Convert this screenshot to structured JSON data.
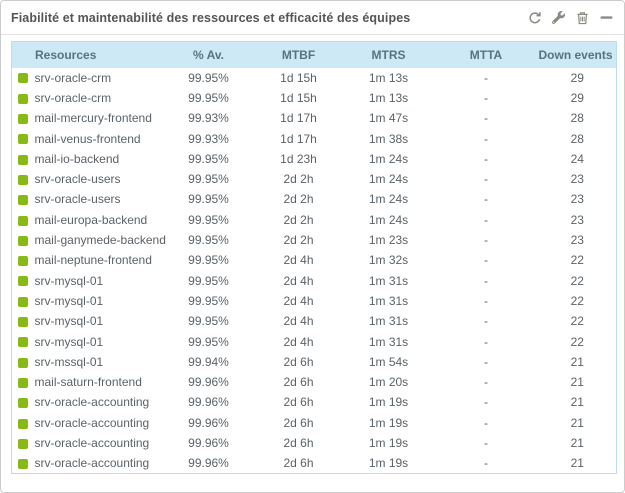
{
  "widget": {
    "title": "Fiabilité et maintenabilité des ressources et efficacité des équipes",
    "toolbar": {
      "refresh_icon": "refresh-icon",
      "configure_icon": "wrench-icon",
      "delete_icon": "trash-icon",
      "minimize_icon": "minus-icon"
    }
  },
  "table": {
    "columns": [
      "Resources",
      "% Av.",
      "MTBF",
      "MTRS",
      "MTTA",
      "Down events"
    ],
    "rows": [
      {
        "status": "ok",
        "resource": "srv-oracle-crm",
        "availability": "99.95%",
        "mtbf": "1d 15h",
        "mtrs": "1m 13s",
        "mtta": "-",
        "down_events": "29"
      },
      {
        "status": "ok",
        "resource": "srv-oracle-crm",
        "availability": "99.95%",
        "mtbf": "1d 15h",
        "mtrs": "1m 13s",
        "mtta": "-",
        "down_events": "29"
      },
      {
        "status": "ok",
        "resource": "mail-mercury-frontend",
        "availability": "99.93%",
        "mtbf": "1d 17h",
        "mtrs": "1m 47s",
        "mtta": "-",
        "down_events": "28"
      },
      {
        "status": "ok",
        "resource": "mail-venus-frontend",
        "availability": "99.93%",
        "mtbf": "1d 17h",
        "mtrs": "1m 38s",
        "mtta": "-",
        "down_events": "28"
      },
      {
        "status": "ok",
        "resource": "mail-io-backend",
        "availability": "99.95%",
        "mtbf": "1d 23h",
        "mtrs": "1m 24s",
        "mtta": "-",
        "down_events": "24"
      },
      {
        "status": "ok",
        "resource": "srv-oracle-users",
        "availability": "99.95%",
        "mtbf": "2d 2h",
        "mtrs": "1m 24s",
        "mtta": "-",
        "down_events": "23"
      },
      {
        "status": "ok",
        "resource": "srv-oracle-users",
        "availability": "99.95%",
        "mtbf": "2d 2h",
        "mtrs": "1m 24s",
        "mtta": "-",
        "down_events": "23"
      },
      {
        "status": "ok",
        "resource": "mail-europa-backend",
        "availability": "99.95%",
        "mtbf": "2d 2h",
        "mtrs": "1m 24s",
        "mtta": "-",
        "down_events": "23"
      },
      {
        "status": "ok",
        "resource": "mail-ganymede-backend",
        "availability": "99.95%",
        "mtbf": "2d 2h",
        "mtrs": "1m 23s",
        "mtta": "-",
        "down_events": "23"
      },
      {
        "status": "ok",
        "resource": "mail-neptune-frontend",
        "availability": "99.95%",
        "mtbf": "2d 4h",
        "mtrs": "1m 32s",
        "mtta": "-",
        "down_events": "22"
      },
      {
        "status": "ok",
        "resource": "srv-mysql-01",
        "availability": "99.95%",
        "mtbf": "2d 4h",
        "mtrs": "1m 31s",
        "mtta": "-",
        "down_events": "22"
      },
      {
        "status": "ok",
        "resource": "srv-mysql-01",
        "availability": "99.95%",
        "mtbf": "2d 4h",
        "mtrs": "1m 31s",
        "mtta": "-",
        "down_events": "22"
      },
      {
        "status": "ok",
        "resource": "srv-mysql-01",
        "availability": "99.95%",
        "mtbf": "2d 4h",
        "mtrs": "1m 31s",
        "mtta": "-",
        "down_events": "22"
      },
      {
        "status": "ok",
        "resource": "srv-mysql-01",
        "availability": "99.95%",
        "mtbf": "2d 4h",
        "mtrs": "1m 31s",
        "mtta": "-",
        "down_events": "22"
      },
      {
        "status": "ok",
        "resource": "srv-mssql-01",
        "availability": "99.94%",
        "mtbf": "2d 6h",
        "mtrs": "1m 54s",
        "mtta": "-",
        "down_events": "21"
      },
      {
        "status": "ok",
        "resource": "mail-saturn-frontend",
        "availability": "99.96%",
        "mtbf": "2d 6h",
        "mtrs": "1m 20s",
        "mtta": "-",
        "down_events": "21"
      },
      {
        "status": "ok",
        "resource": "srv-oracle-accounting",
        "availability": "99.96%",
        "mtbf": "2d 6h",
        "mtrs": "1m 19s",
        "mtta": "-",
        "down_events": "21"
      },
      {
        "status": "ok",
        "resource": "srv-oracle-accounting",
        "availability": "99.96%",
        "mtbf": "2d 6h",
        "mtrs": "1m 19s",
        "mtta": "-",
        "down_events": "21"
      },
      {
        "status": "ok",
        "resource": "srv-oracle-accounting",
        "availability": "99.96%",
        "mtbf": "2d 6h",
        "mtrs": "1m 19s",
        "mtta": "-",
        "down_events": "21"
      },
      {
        "status": "ok",
        "resource": "srv-oracle-accounting",
        "availability": "99.96%",
        "mtbf": "2d 6h",
        "mtrs": "1m 19s",
        "mtta": "-",
        "down_events": "21"
      }
    ]
  },
  "colors": {
    "status_ok": "#88b917",
    "header_bg": "#cde9f6",
    "header_text": "#5a7280",
    "table_border": "#bcdcee",
    "widget_border": "#cccccc",
    "title_text": "#555555",
    "icon_color": "#8b8a80",
    "row_text": "#5a6268"
  }
}
